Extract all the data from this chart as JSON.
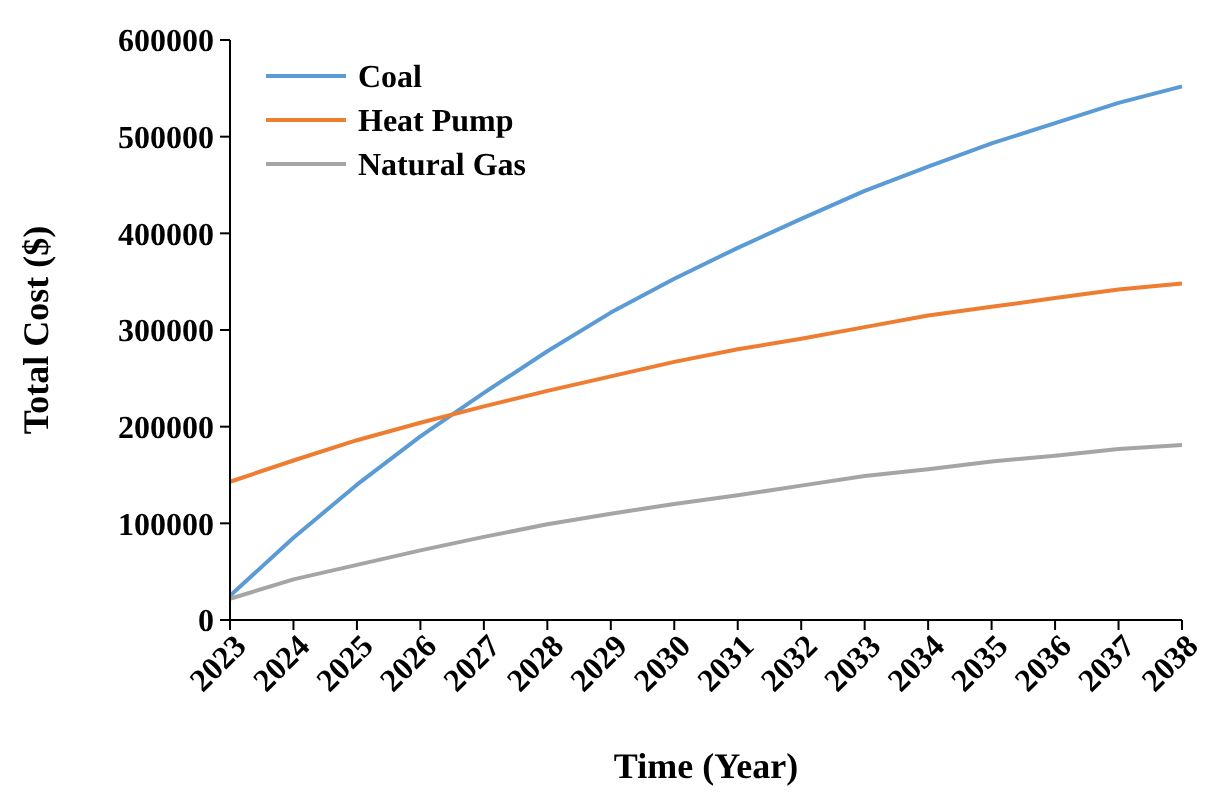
{
  "chart_data": {
    "type": "line",
    "xlabel": "Time (Year)",
    "ylabel": "Total Cost ($)",
    "x": [
      2023,
      2024,
      2025,
      2026,
      2027,
      2028,
      2029,
      2030,
      2031,
      2032,
      2033,
      2034,
      2035,
      2036,
      2037,
      2038
    ],
    "series": [
      {
        "name": "Coal",
        "color": "#5b9bd5",
        "values": [
          25000,
          85000,
          140000,
          190000,
          235000,
          278000,
          318000,
          353000,
          385000,
          415000,
          444000,
          469000,
          493000,
          514000,
          535000,
          552000
        ]
      },
      {
        "name": "Heat Pump",
        "color": "#ed7d31",
        "values": [
          143000,
          165000,
          186000,
          204000,
          221000,
          237000,
          252000,
          267000,
          280000,
          291000,
          303000,
          315000,
          324000,
          333000,
          342000,
          348000
        ]
      },
      {
        "name": "Natural Gas",
        "color": "#a5a5a5",
        "values": [
          22000,
          42000,
          57000,
          72000,
          86000,
          99000,
          110000,
          120000,
          129000,
          139000,
          149000,
          156000,
          164000,
          170000,
          177000,
          181000
        ]
      }
    ],
    "xlim": [
      2023,
      2038
    ],
    "xticks": [
      2023,
      2024,
      2025,
      2026,
      2027,
      2028,
      2029,
      2030,
      2031,
      2032,
      2033,
      2034,
      2035,
      2036,
      2037,
      2038
    ],
    "ylim": [
      0,
      600000
    ],
    "yticks": [
      0,
      100000,
      200000,
      300000,
      400000,
      500000,
      600000
    ],
    "grid": false,
    "legend": "top left",
    "marker": "none",
    "line_style": "solid"
  }
}
